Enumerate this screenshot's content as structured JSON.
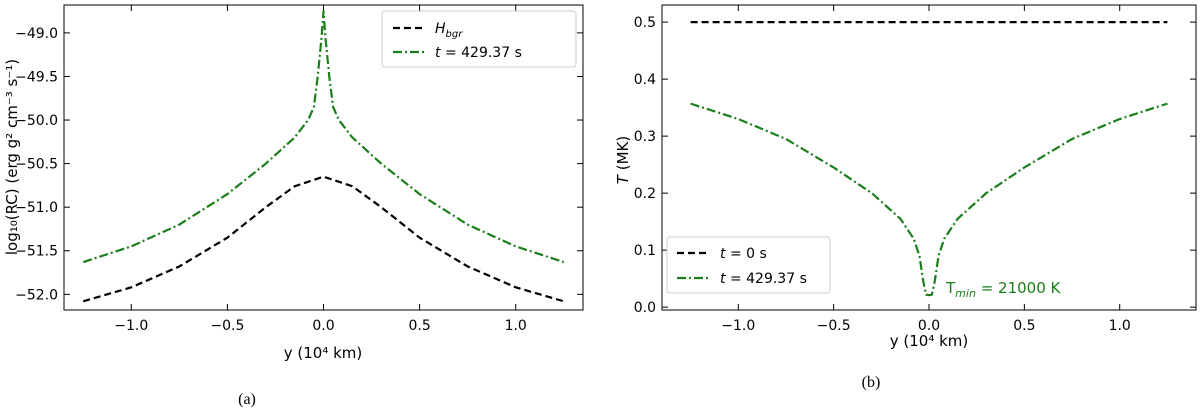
{
  "colors": {
    "black": "#000000",
    "green": "#1a7f1a"
  },
  "chart_data": [
    {
      "type": "line",
      "caption": "(a)",
      "xlabel": "y (10⁴ km)",
      "ylabel": "log₁₀(RC) (erg g² cm⁻³ s⁻¹)",
      "xlim": [
        -1.35,
        1.35
      ],
      "ylim": [
        -52.18,
        -48.68
      ],
      "xticks": [
        -1.0,
        -0.5,
        0.0,
        0.5,
        1.0
      ],
      "xtick_labels": [
        "−1.0",
        "−0.5",
        "0.0",
        "0.5",
        "1.0"
      ],
      "yticks": [
        -49.0,
        -49.5,
        -50.0,
        -50.5,
        -51.0,
        -51.5,
        -52.0
      ],
      "ytick_labels": [
        "−49.0",
        "−49.5",
        "−50.0",
        "−50.5",
        "−51.0",
        "−51.5",
        "−52.0"
      ],
      "legend_placement": "top-right",
      "series": [
        {
          "name": "H_bgr",
          "style": "dashed",
          "color": "#000000",
          "x": [
            -1.25,
            -1.0,
            -0.75,
            -0.5,
            -0.3,
            -0.15,
            0.0,
            0.15,
            0.3,
            0.5,
            0.75,
            1.0,
            1.25
          ],
          "y": [
            -52.08,
            -51.92,
            -51.68,
            -51.35,
            -51.0,
            -50.76,
            -50.65,
            -50.76,
            -51.0,
            -51.35,
            -51.68,
            -51.92,
            -52.08
          ]
        },
        {
          "name": "t = 429.37 s",
          "style": "dashdot",
          "color": "#1a7f1a",
          "x": [
            -1.25,
            -1.0,
            -0.75,
            -0.5,
            -0.3,
            -0.15,
            -0.08,
            -0.05,
            -0.03,
            -0.01,
            0.0,
            0.01,
            0.03,
            0.05,
            0.08,
            0.15,
            0.3,
            0.5,
            0.75,
            1.0,
            1.25
          ],
          "y": [
            -51.63,
            -51.45,
            -51.2,
            -50.85,
            -50.5,
            -50.2,
            -50.0,
            -49.85,
            -49.5,
            -49.05,
            -48.75,
            -49.05,
            -49.5,
            -49.85,
            -50.0,
            -50.2,
            -50.5,
            -50.85,
            -51.2,
            -51.45,
            -51.63
          ]
        }
      ]
    },
    {
      "type": "line",
      "caption": "(b)",
      "xlabel": "y (10⁴ km)",
      "ylabel": "T (MK)",
      "xlim": [
        -1.4,
        1.4
      ],
      "ylim": [
        -0.005,
        0.53
      ],
      "xticks": [
        -1.0,
        -0.5,
        0.0,
        0.5,
        1.0
      ],
      "xtick_labels": [
        "−1.0",
        "−0.5",
        "0.0",
        "0.5",
        "1.0"
      ],
      "yticks": [
        0.0,
        0.1,
        0.2,
        0.3,
        0.4,
        0.5
      ],
      "ytick_labels": [
        "0.0",
        "0.1",
        "0.2",
        "0.3",
        "0.4",
        "0.5"
      ],
      "legend_placement": "bottom-left",
      "annotation": "T_min = 21000 K",
      "series": [
        {
          "name": "t = 0 s",
          "style": "dashed",
          "color": "#000000",
          "x": [
            -1.25,
            1.25
          ],
          "y": [
            0.5,
            0.5
          ]
        },
        {
          "name": "t = 429.37 s",
          "style": "dashdot",
          "color": "#1a7f1a",
          "x": [
            -1.25,
            -1.0,
            -0.75,
            -0.5,
            -0.3,
            -0.15,
            -0.08,
            -0.05,
            -0.03,
            -0.015,
            0.0,
            0.015,
            0.03,
            0.05,
            0.08,
            0.15,
            0.3,
            0.5,
            0.75,
            1.0,
            1.25
          ],
          "y": [
            0.357,
            0.33,
            0.295,
            0.245,
            0.2,
            0.155,
            0.12,
            0.09,
            0.045,
            0.022,
            0.021,
            0.022,
            0.045,
            0.09,
            0.12,
            0.155,
            0.2,
            0.245,
            0.295,
            0.33,
            0.357
          ]
        }
      ]
    }
  ]
}
